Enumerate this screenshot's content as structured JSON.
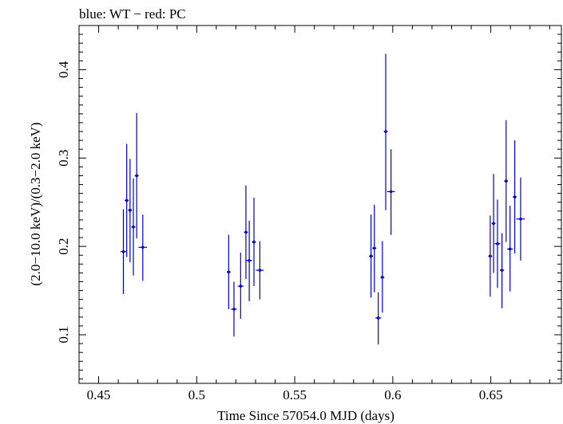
{
  "header": {
    "title": "blue: WT − red: PC"
  },
  "chart_data": {
    "type": "scatter",
    "title": "blue: WT − red: PC",
    "xlabel": "Time Since 57054.0 MJD (days)",
    "ylabel": "(2.0−10.0 keV)/(0.3−2.0 keV)",
    "xlim": [
      0.44,
      0.686
    ],
    "ylim": [
      0.045,
      0.45
    ],
    "xticks": [
      0.45,
      0.5,
      0.55,
      0.6,
      0.65
    ],
    "xtick_labels": [
      "0.45",
      "0.5",
      "0.55",
      "0.6",
      "0.65"
    ],
    "yticks": [
      0.1,
      0.2,
      0.3,
      0.4
    ],
    "ytick_labels": [
      "0.1",
      "0.2",
      "0.3",
      "0.4"
    ],
    "grid": false,
    "series": [
      {
        "color": "#0000cc",
        "points": [
          {
            "x": 0.4626,
            "y": 0.194,
            "yerr_low": 0.146,
            "yerr_high": 0.242,
            "xerr": 0.0015
          },
          {
            "x": 0.4643,
            "y": 0.252,
            "yerr_low": 0.188,
            "yerr_high": 0.316,
            "xerr": 0.001
          },
          {
            "x": 0.466,
            "y": 0.241,
            "yerr_low": 0.182,
            "yerr_high": 0.299,
            "xerr": 0.001
          },
          {
            "x": 0.4677,
            "y": 0.222,
            "yerr_low": 0.167,
            "yerr_high": 0.277,
            "xerr": 0.001
          },
          {
            "x": 0.4694,
            "y": 0.28,
            "yerr_low": 0.209,
            "yerr_high": 0.351,
            "xerr": 0.001
          },
          {
            "x": 0.4725,
            "y": 0.199,
            "yerr_low": 0.161,
            "yerr_high": 0.236,
            "xerr": 0.0022
          },
          {
            "x": 0.5163,
            "y": 0.171,
            "yerr_low": 0.129,
            "yerr_high": 0.213,
            "xerr": 0.001
          },
          {
            "x": 0.519,
            "y": 0.129,
            "yerr_low": 0.098,
            "yerr_high": 0.16,
            "xerr": 0.0015
          },
          {
            "x": 0.5224,
            "y": 0.155,
            "yerr_low": 0.118,
            "yerr_high": 0.193,
            "xerr": 0.0015
          },
          {
            "x": 0.5251,
            "y": 0.216,
            "yerr_low": 0.163,
            "yerr_high": 0.269,
            "xerr": 0.001
          },
          {
            "x": 0.5268,
            "y": 0.184,
            "yerr_low": 0.138,
            "yerr_high": 0.229,
            "xerr": 0.0015
          },
          {
            "x": 0.5292,
            "y": 0.205,
            "yerr_low": 0.155,
            "yerr_high": 0.255,
            "xerr": 0.001
          },
          {
            "x": 0.5322,
            "y": 0.173,
            "yerr_low": 0.14,
            "yerr_high": 0.206,
            "xerr": 0.002
          },
          {
            "x": 0.5889,
            "y": 0.189,
            "yerr_low": 0.142,
            "yerr_high": 0.236,
            "xerr": 0.001
          },
          {
            "x": 0.5906,
            "y": 0.198,
            "yerr_low": 0.148,
            "yerr_high": 0.247,
            "xerr": 0.001
          },
          {
            "x": 0.5926,
            "y": 0.119,
            "yerr_low": 0.089,
            "yerr_high": 0.148,
            "xerr": 0.0015
          },
          {
            "x": 0.5947,
            "y": 0.165,
            "yerr_low": 0.125,
            "yerr_high": 0.206,
            "xerr": 0.001
          },
          {
            "x": 0.5964,
            "y": 0.33,
            "yerr_low": 0.241,
            "yerr_high": 0.418,
            "xerr": 0.001
          },
          {
            "x": 0.5991,
            "y": 0.262,
            "yerr_low": 0.213,
            "yerr_high": 0.31,
            "xerr": 0.002
          },
          {
            "x": 0.6497,
            "y": 0.189,
            "yerr_low": 0.143,
            "yerr_high": 0.235,
            "xerr": 0.001
          },
          {
            "x": 0.6514,
            "y": 0.226,
            "yerr_low": 0.17,
            "yerr_high": 0.282,
            "xerr": 0.001
          },
          {
            "x": 0.6534,
            "y": 0.203,
            "yerr_low": 0.153,
            "yerr_high": 0.253,
            "xerr": 0.0015
          },
          {
            "x": 0.6557,
            "y": 0.173,
            "yerr_low": 0.13,
            "yerr_high": 0.215,
            "xerr": 0.001
          },
          {
            "x": 0.6578,
            "y": 0.274,
            "yerr_low": 0.205,
            "yerr_high": 0.343,
            "xerr": 0.001
          },
          {
            "x": 0.6598,
            "y": 0.197,
            "yerr_low": 0.149,
            "yerr_high": 0.246,
            "xerr": 0.0015
          },
          {
            "x": 0.6622,
            "y": 0.256,
            "yerr_low": 0.192,
            "yerr_high": 0.32,
            "xerr": 0.001
          },
          {
            "x": 0.6652,
            "y": 0.231,
            "yerr_low": 0.184,
            "yerr_high": 0.278,
            "xerr": 0.0022
          }
        ]
      }
    ]
  }
}
